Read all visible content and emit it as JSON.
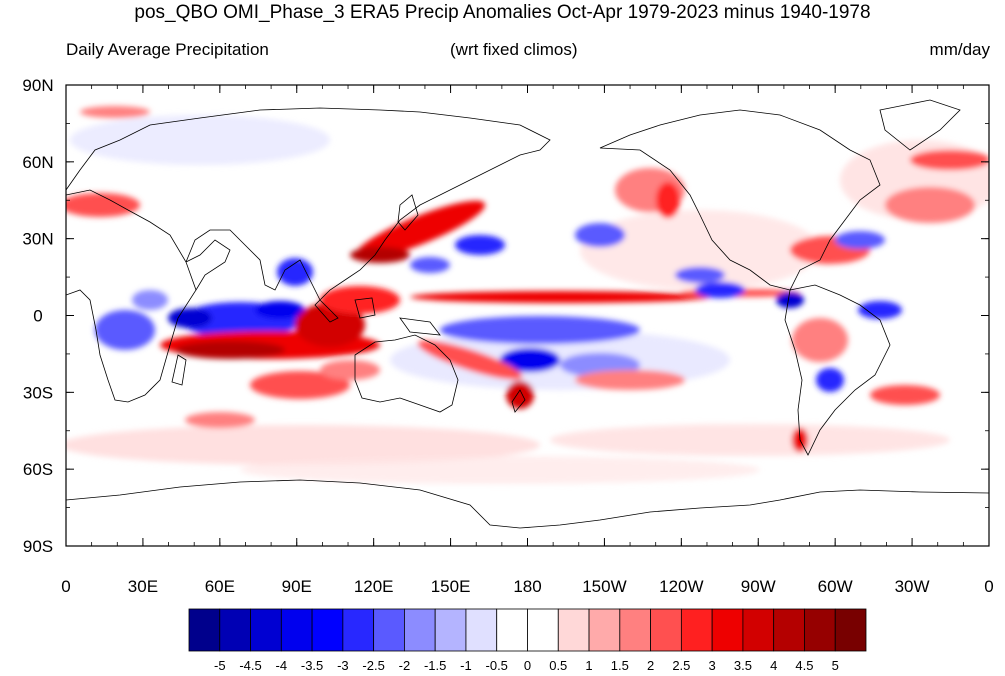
{
  "title": "pos_QBO OMI_Phase_3 ERA5 Precip Anomalies Oct-Apr 1979-2023 minus 1940-1978",
  "left_subtitle": "Daily Average Precipitation",
  "center_subtitle": "(wrt fixed climos)",
  "units": "mm/day",
  "map": {
    "projection": "cylindrical-equidistant",
    "lon_range": [
      0,
      360
    ],
    "lat_range": [
      -90,
      90
    ],
    "lat_labels": [
      "90N",
      "60N",
      "30N",
      "0",
      "30S",
      "60S",
      "90S"
    ],
    "lon_labels": [
      "0",
      "30E",
      "60E",
      "90E",
      "120E",
      "150E",
      "180",
      "150W",
      "120W",
      "90W",
      "60W",
      "30W",
      "0"
    ]
  },
  "colorbar": {
    "labels": [
      "-5",
      "-4.5",
      "-4",
      "-3.5",
      "-3",
      "-2.5",
      "-2",
      "-1.5",
      "-1",
      "-0.5",
      "0",
      "0.5",
      "1",
      "1.5",
      "2",
      "2.5",
      "3",
      "3.5",
      "4",
      "4.5",
      "5"
    ],
    "colors": [
      "#00008c",
      "#0000b4",
      "#0000d2",
      "#0000ee",
      "#0000ff",
      "#2828ff",
      "#5a5aff",
      "#8c8cff",
      "#b4b4ff",
      "#e0e0ff",
      "#ffffff",
      "#ffffff",
      "#ffd8d8",
      "#ffaaaa",
      "#ff8080",
      "#ff5050",
      "#ff2020",
      "#ee0000",
      "#d20000",
      "#b40000",
      "#960000",
      "#780000"
    ]
  }
}
